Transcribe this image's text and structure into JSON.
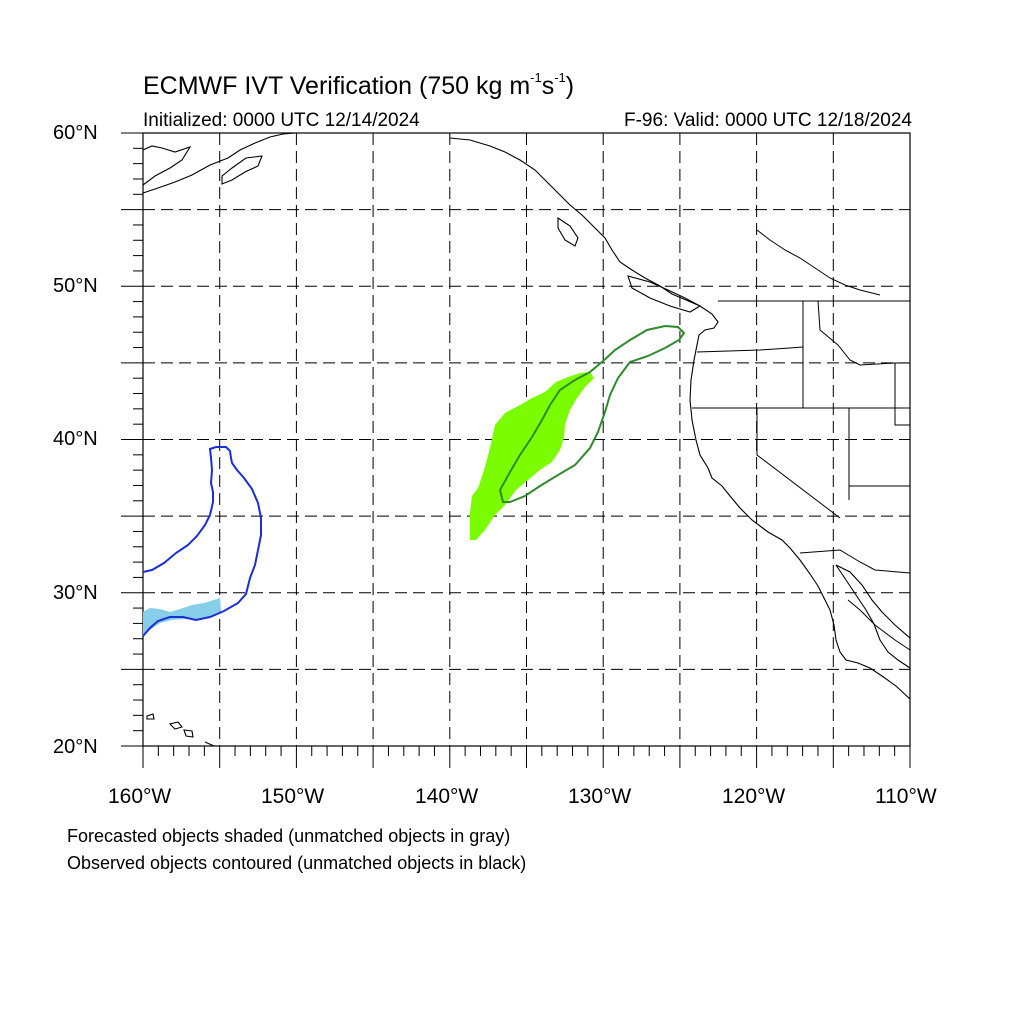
{
  "title": {
    "prefix": "ECMWF IVT Verification (750 kg m",
    "exp1": "-1",
    "mid": "s",
    "exp2": "-1",
    "suffix": ")"
  },
  "initialized": "Initialized: 0000 UTC 12/14/2024",
  "valid": "F-96: Valid: 0000 UTC 12/18/2024",
  "lat_labels": [
    "60°N",
    "50°N",
    "40°N",
    "30°N",
    "20°N"
  ],
  "lon_labels": [
    "160°W",
    "150°W",
    "140°W",
    "130°W",
    "120°W",
    "110°W"
  ],
  "footnotes": [
    "Forecasted objects shaded (unmatched objects in gray)",
    "Observed objects contoured (unmatched objects in black)"
  ],
  "map": {
    "lon_range": [
      -160,
      -110
    ],
    "lat_range": [
      20,
      60
    ],
    "gridline_spacing_deg": 5,
    "gridline_style": "dashed",
    "colors": {
      "coastline": "#000000",
      "gridline": "#000000",
      "pair1_forecast_fill": "#87ceeb",
      "pair1_observed_contour": "#1a2fd6",
      "pair2_forecast_fill": "#7cfc00",
      "pair2_observed_contour": "#2e8b2e"
    }
  }
}
